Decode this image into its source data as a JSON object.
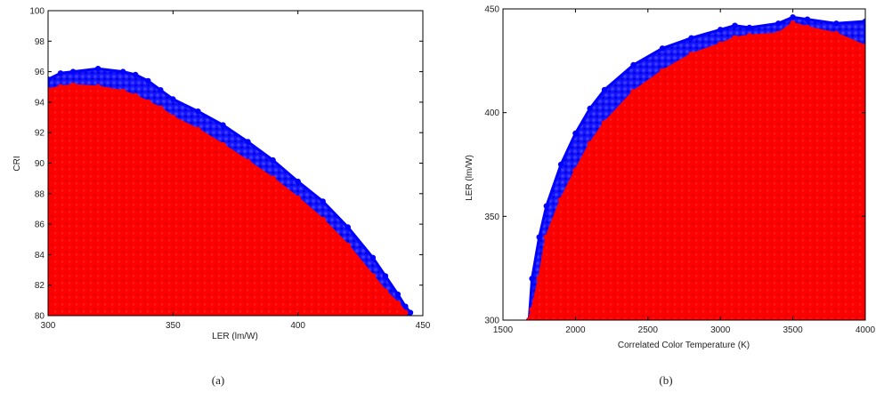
{
  "chart_data": [
    {
      "type": "scatter",
      "panel_caption": "(a)",
      "xlabel": "LER (lm/W)",
      "ylabel": "CRI",
      "xlim": [
        300,
        450
      ],
      "ylim": [
        80,
        100
      ],
      "xticks": [
        "300",
        "350",
        "400",
        "450"
      ],
      "yticks": [
        "80",
        "82",
        "84",
        "86",
        "88",
        "90",
        "92",
        "94",
        "96",
        "98",
        "100"
      ],
      "grid": false,
      "series": [
        {
          "color": "#0000ff",
          "upper_envelope": {
            "x": [
              300,
              305,
              310,
              320,
              330,
              335,
              340,
              345,
              350,
              360,
              370,
              380,
              390,
              400,
              410,
              420,
              430,
              435,
              440,
              443,
              445
            ],
            "y": [
              95.5,
              95.9,
              96.0,
              96.2,
              96.0,
              95.8,
              95.4,
              94.8,
              94.2,
              93.4,
              92.5,
              91.4,
              90.2,
              88.8,
              87.5,
              85.8,
              83.8,
              82.6,
              81.4,
              80.6,
              80.2
            ]
          }
        },
        {
          "color": "#ff0000",
          "upper_envelope": {
            "x": [
              300,
              305,
              310,
              320,
              330,
              335,
              340,
              345,
              350,
              360,
              370,
              380,
              390,
              400,
              410,
              420,
              430,
              435,
              440,
              443
            ],
            "y": [
              94.8,
              95.0,
              95.1,
              95.0,
              94.7,
              94.4,
              94.0,
              93.6,
              93.0,
              92.2,
              91.2,
              90.1,
              89.0,
              87.7,
              86.3,
              84.6,
              82.6,
              81.6,
              80.8,
              80.2
            ]
          }
        }
      ]
    },
    {
      "type": "scatter",
      "panel_caption": "(b)",
      "xlabel": "Correlated Color Temperature (K)",
      "ylabel": "LER (lm/W)",
      "xlim": [
        1500,
        4000
      ],
      "ylim": [
        300,
        450
      ],
      "xticks": [
        "1500",
        "2000",
        "2500",
        "3000",
        "3500",
        "4000"
      ],
      "yticks": [
        "300",
        "350",
        "400",
        "450"
      ],
      "grid": false,
      "series": [
        {
          "color": "#0000ff",
          "upper_envelope": {
            "x": [
              1680,
              1700,
              1750,
              1800,
              1900,
              2000,
              2100,
              2200,
              2400,
              2600,
              2800,
              3000,
              3100,
              3200,
              3400,
              3500,
              3600,
              3800,
              4000
            ],
            "y": [
              300,
              320,
              340,
              355,
              375,
              390,
              402,
              411,
              423,
              431,
              436,
              440,
              442,
              441,
              443,
              446,
              445,
              443,
              444
            ]
          }
        },
        {
          "color": "#ff0000",
          "upper_envelope": {
            "x": [
              1680,
              1700,
              1750,
              1800,
              1900,
              2000,
              2100,
              2200,
              2400,
              2600,
              2800,
              3000,
              3100,
              3200,
              3400,
              3500,
              3600,
              3800,
              4000
            ],
            "y": [
              300,
              305,
              320,
              340,
              358,
              372,
              385,
              395,
              410,
              420,
              428,
              433,
              436,
              437,
              438,
              443,
              441,
              438,
              432
            ]
          }
        }
      ]
    }
  ]
}
